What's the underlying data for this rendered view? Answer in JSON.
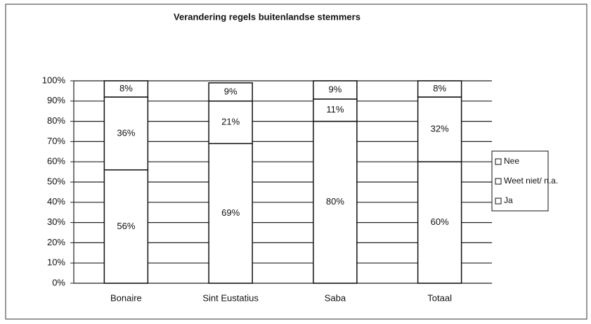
{
  "chart_data": {
    "type": "stacked_bar",
    "title": "Verandering regels buitenlandse stemmers",
    "categories": [
      "Bonaire",
      "Sint Eustatius",
      "Saba",
      "Totaal"
    ],
    "series": [
      {
        "name": "Ja",
        "color": "#ffffff",
        "values": [
          56,
          69,
          80,
          60
        ],
        "value_labels": [
          "56%",
          "69%",
          "80%",
          "60%"
        ]
      },
      {
        "name": "Weet niet/ n.a.",
        "color": "#ffffff",
        "values": [
          36,
          21,
          11,
          32
        ],
        "value_labels": [
          "36%",
          "21%",
          "11%",
          "32%"
        ]
      },
      {
        "name": "Nee",
        "color": "#ffffff",
        "values": [
          8,
          9,
          9,
          8
        ],
        "value_labels": [
          "8%",
          "9%",
          "9%",
          "8%"
        ]
      }
    ],
    "ylim": [
      0,
      100
    ],
    "yticks": [
      {
        "value": 0,
        "label": "0%"
      },
      {
        "value": 10,
        "label": "10%"
      },
      {
        "value": 20,
        "label": "20%"
      },
      {
        "value": 30,
        "label": "30%"
      },
      {
        "value": 40,
        "label": "40%"
      },
      {
        "value": 50,
        "label": "50%"
      },
      {
        "value": 60,
        "label": "60%"
      },
      {
        "value": 70,
        "label": "70%"
      },
      {
        "value": 80,
        "label": "80%"
      },
      {
        "value": 90,
        "label": "90%"
      },
      {
        "value": 100,
        "label": "100%"
      }
    ],
    "grid": true,
    "legend": "right"
  }
}
